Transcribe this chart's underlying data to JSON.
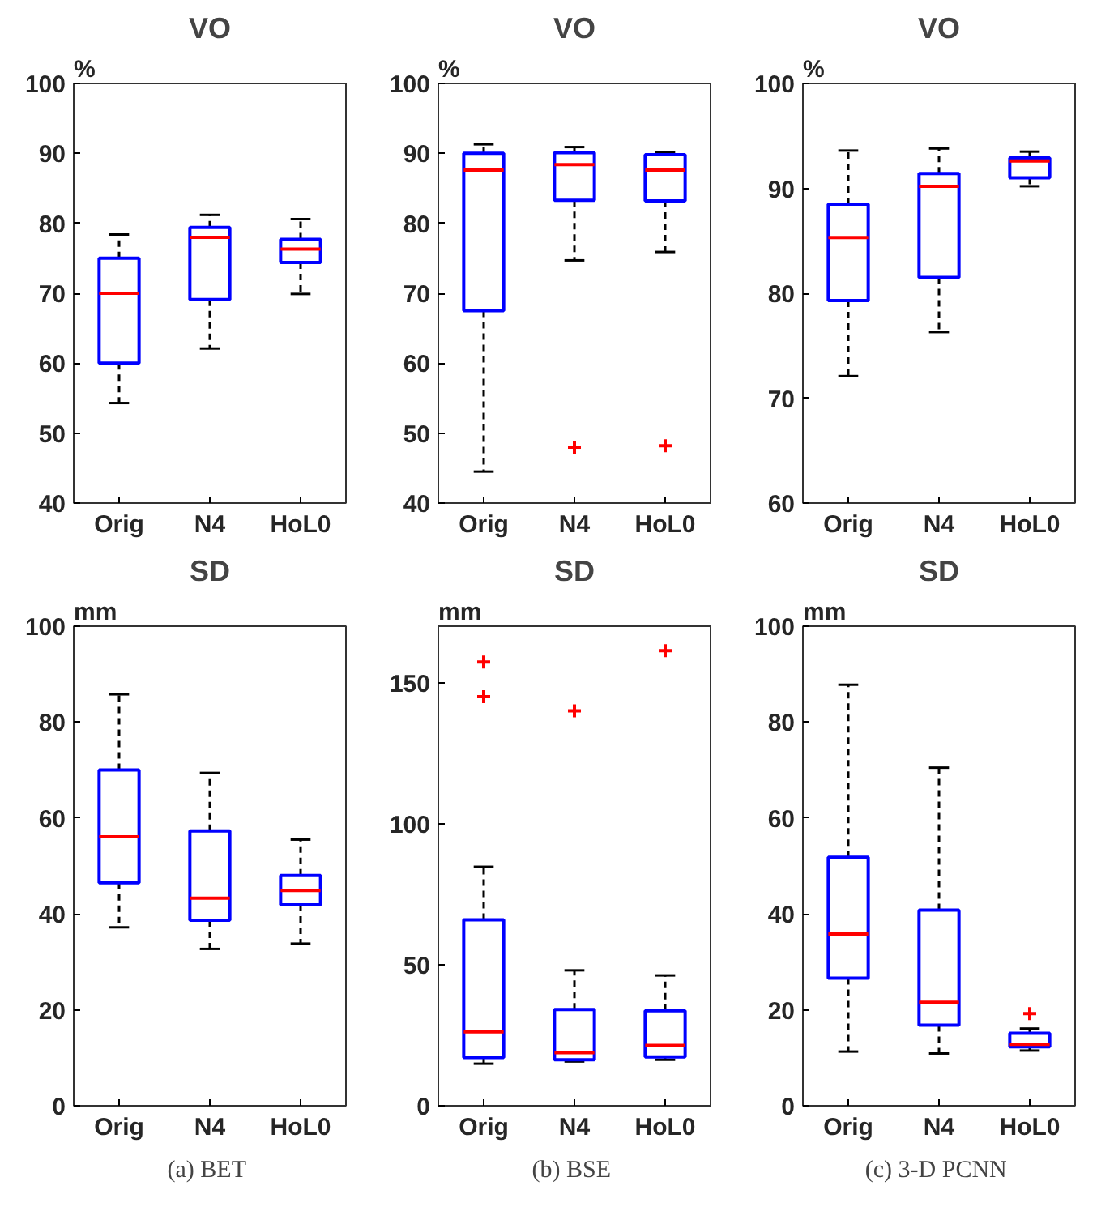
{
  "chart_data": [
    {
      "type": "box",
      "title": "VO",
      "ylabel": "%",
      "categories": [
        "Orig",
        "N4",
        "HoL0"
      ],
      "ylim": [
        40,
        100
      ],
      "yticks": [
        40,
        50,
        60,
        70,
        80,
        90,
        100
      ],
      "series": [
        {
          "color": "#0000ff",
          "boxes": [
            {
              "low": 54.3,
              "q1": 60,
              "median": 70,
              "q3": 75,
              "high": 78.4
            },
            {
              "low": 62.1,
              "q1": 69.1,
              "median": 78,
              "q3": 79.4,
              "high": 81.2
            },
            {
              "low": 69.9,
              "q1": 74.4,
              "median": 76.3,
              "q3": 77.7,
              "high": 80.6
            }
          ]
        }
      ]
    },
    {
      "type": "box",
      "title": "VO",
      "ylabel": "%",
      "categories": [
        "Orig",
        "N4",
        "HoL0"
      ],
      "ylim": [
        40,
        100
      ],
      "yticks": [
        40,
        50,
        60,
        70,
        80,
        90,
        100
      ],
      "series": [
        {
          "color": "#0000ff",
          "boxes": [
            {
              "low": 44.5,
              "q1": 67.5,
              "median": 87.6,
              "q3": 90,
              "high": 91.3
            },
            {
              "low": 74.7,
              "q1": 83.3,
              "median": 88.4,
              "q3": 90.1,
              "high": 90.9,
              "outliers": [
                48
              ]
            },
            {
              "low": 75.9,
              "q1": 83.2,
              "median": 87.6,
              "q3": 89.8,
              "high": 90.1,
              "outliers": [
                48.2
              ]
            }
          ]
        }
      ]
    },
    {
      "type": "box",
      "title": "VO",
      "ylabel": "%",
      "categories": [
        "Orig",
        "N4",
        "HoL0"
      ],
      "ylim": [
        60,
        100
      ],
      "yticks": [
        60,
        70,
        80,
        90,
        100
      ],
      "series": [
        {
          "color": "#0000ff",
          "boxes": [
            {
              "low": 72.1,
              "q1": 79.3,
              "median": 85.3,
              "q3": 88.5,
              "high": 93.6
            },
            {
              "low": 76.3,
              "q1": 81.5,
              "median": 90.2,
              "q3": 91.4,
              "high": 93.8
            },
            {
              "low": 90.2,
              "q1": 91,
              "median": 92.6,
              "q3": 92.9,
              "high": 93.5
            }
          ]
        }
      ]
    },
    {
      "type": "box",
      "title": "SD",
      "ylabel": "mm",
      "categories": [
        "Orig",
        "N4",
        "HoL0"
      ],
      "ylim": [
        0,
        100
      ],
      "yticks": [
        0,
        20,
        40,
        60,
        80,
        100
      ],
      "annotations": [
        "(a)  BET"
      ],
      "series": [
        {
          "color": "#0000ff",
          "boxes": [
            {
              "low": 37.2,
              "q1": 46.5,
              "median": 56.1,
              "q3": 70,
              "high": 85.8
            },
            {
              "low": 32.7,
              "q1": 38.7,
              "median": 43.3,
              "q3": 57.3,
              "high": 69.4
            },
            {
              "low": 33.8,
              "q1": 41.9,
              "median": 44.9,
              "q3": 48,
              "high": 55.5
            }
          ]
        }
      ]
    },
    {
      "type": "box",
      "title": "SD",
      "ylabel": "mm",
      "categories": [
        "Orig",
        "N4",
        "HoL0"
      ],
      "ylim": [
        0,
        170
      ],
      "yticks": [
        0,
        50,
        100,
        150
      ],
      "annotations": [
        "(b)  BSE"
      ],
      "series": [
        {
          "color": "#0000ff",
          "boxes": [
            {
              "low": 14.9,
              "q1": 17.1,
              "median": 26.2,
              "q3": 65.9,
              "high": 84.7,
              "outliers": [
                145,
                157.3
              ]
            },
            {
              "low": 15.7,
              "q1": 16.3,
              "median": 18.8,
              "q3": 34.1,
              "high": 48,
              "outliers": [
                140
              ]
            },
            {
              "low": 16.3,
              "q1": 17.3,
              "median": 21.4,
              "q3": 33.7,
              "high": 46.2,
              "outliers": [
                161.3
              ]
            }
          ]
        }
      ]
    },
    {
      "type": "box",
      "title": "SD",
      "ylabel": "mm",
      "categories": [
        "Orig",
        "N4",
        "HoL0"
      ],
      "ylim": [
        0,
        100
      ],
      "yticks": [
        0,
        20,
        40,
        60,
        80,
        100
      ],
      "annotations": [
        "(c)  3-D PCNN"
      ],
      "series": [
        {
          "color": "#0000ff",
          "boxes": [
            {
              "low": 11.3,
              "q1": 26.6,
              "median": 35.8,
              "q3": 51.8,
              "high": 87.8
            },
            {
              "low": 10.9,
              "q1": 16.8,
              "median": 21.6,
              "q3": 40.8,
              "high": 70.5
            },
            {
              "low": 11.5,
              "q1": 12.3,
              "median": 12.8,
              "q3": 15.1,
              "high": 16.1,
              "outliers": [
                19.2
              ]
            }
          ]
        }
      ]
    }
  ]
}
